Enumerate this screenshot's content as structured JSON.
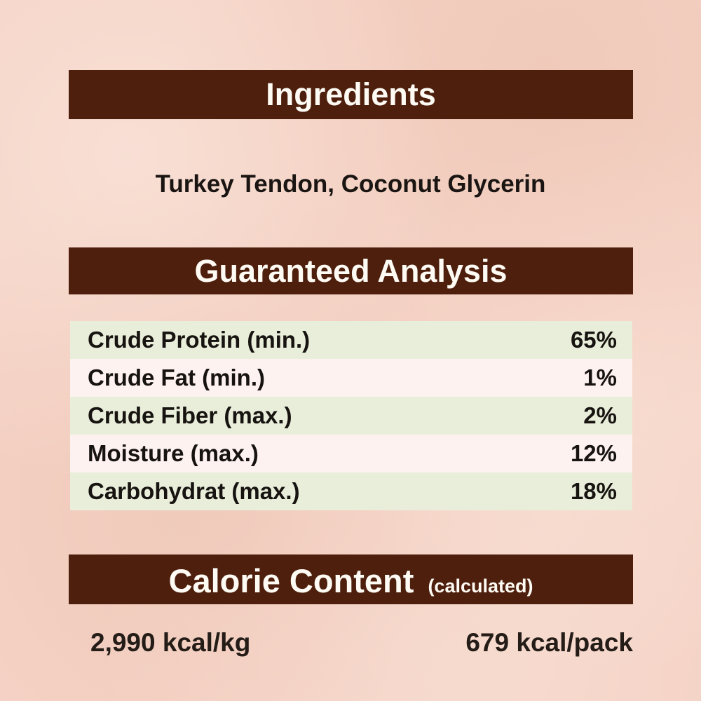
{
  "ingredients": {
    "title": "Ingredients",
    "list": "Turkey Tendon, Coconut Glycerin"
  },
  "guaranteed_analysis": {
    "title": "Guaranteed Analysis",
    "rows": [
      {
        "name": "Crude Protein (min.)",
        "value": "65%"
      },
      {
        "name": "Crude Fat (min.)",
        "value": "1%"
      },
      {
        "name": "Crude Fiber (max.)",
        "value": "2%"
      },
      {
        "name": "Moisture (max.)",
        "value": "12%"
      },
      {
        "name": "Carbohydrat (max.)",
        "value": "18%"
      }
    ]
  },
  "calorie_content": {
    "title": "Calorie Content",
    "subtitle": "(calculated)",
    "per_kg": "2,990 kcal/kg",
    "per_pack": "679 kcal/pack"
  },
  "colors": {
    "bar_brown": "#4f1f0e",
    "background_peach": "#f5d3c6",
    "row_green": "#e9eeda",
    "row_light": "#fdf2ef",
    "bar_text": "#fdfbf3",
    "body_text": "#1a1512"
  }
}
